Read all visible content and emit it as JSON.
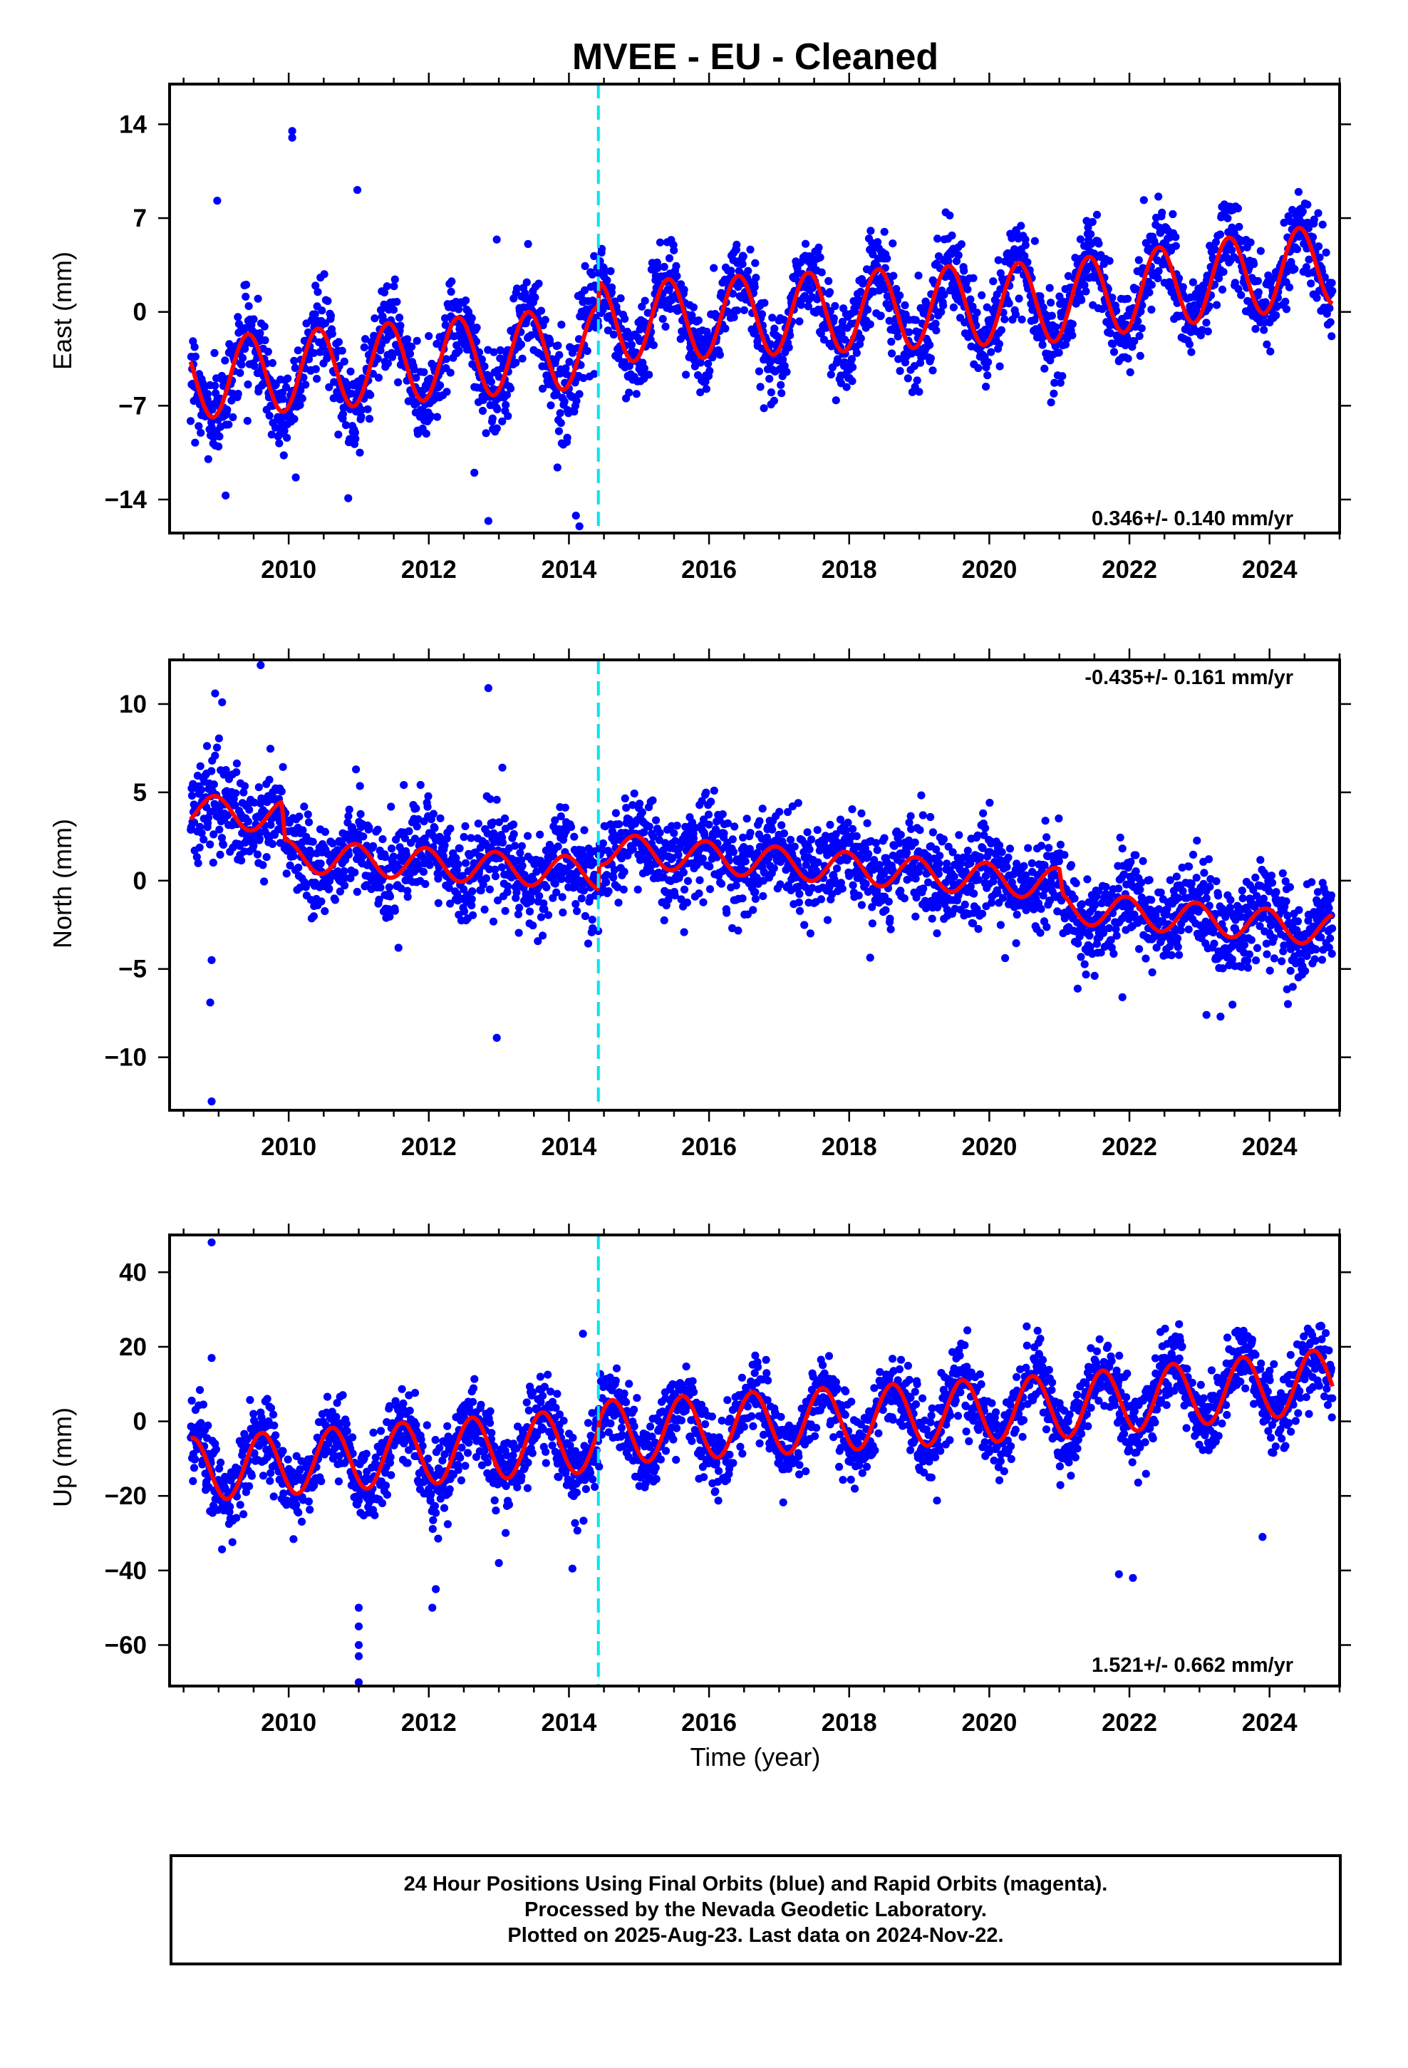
{
  "title": "MVEE  - EU - Cleaned",
  "xlabel": "Time (year)",
  "footer": {
    "line1": "24 Hour Positions Using Final Orbits (blue) and Rapid Orbits (magenta).",
    "line2": "Processed by the Nevada Geodetic Laboratory.",
    "line3": "Plotted on 2025-Aug-23. Last data on 2024-Nov-22."
  },
  "colors": {
    "points": "#0000ff",
    "model": "#ff0000",
    "event_line": "#00e5ee",
    "frame": "#000000"
  },
  "chart_data": [
    {
      "type": "scatter",
      "name": "east",
      "ylabel": "East (mm)",
      "xlim": [
        2008.3,
        2025.0
      ],
      "ylim": [
        -16.5,
        17
      ],
      "yticks": [
        -14,
        -7,
        0,
        7,
        14
      ],
      "xticks": [
        2010,
        2012,
        2014,
        2016,
        2018,
        2020,
        2022,
        2024
      ],
      "rate_text": "0.346+/- 0.140 mm/yr",
      "rate_position": "bottom-right",
      "event_line_x": 2014.42,
      "model": {
        "base": [
          [
            2008.6,
            -5.0
          ],
          [
            2014.42,
            -2.6
          ],
          [
            2014.43,
            -0.8
          ],
          [
            2021.0,
            0.8
          ],
          [
            2024.9,
            3.6
          ]
        ],
        "amp": 3.0,
        "peak_phase": 0.42
      },
      "scatter_sigma": 1.6,
      "outliers": [
        [
          2010.05,
          17.0
        ],
        [
          2010.05,
          13.5
        ],
        [
          2010.05,
          13.0
        ],
        [
          2008.98,
          8.3
        ],
        [
          2010.98,
          9.1
        ],
        [
          2012.97,
          5.4
        ],
        [
          2009.1,
          -13.7
        ],
        [
          2010.85,
          -13.9
        ],
        [
          2012.85,
          -15.6
        ],
        [
          2014.1,
          -15.2
        ],
        [
          2014.15,
          -16.0
        ],
        [
          2012.65,
          -12.0
        ]
      ]
    },
    {
      "type": "scatter",
      "name": "north",
      "ylabel": "North (mm)",
      "xlim": [
        2008.3,
        2025.0
      ],
      "ylim": [
        -13,
        12.5
      ],
      "yticks": [
        -10,
        -5,
        0,
        5,
        10
      ],
      "xticks": [
        2010,
        2012,
        2014,
        2016,
        2018,
        2020,
        2022,
        2024
      ],
      "rate_text": "-0.435+/- 0.161 mm/yr",
      "rate_position": "top-right",
      "event_line_x": 2014.42,
      "model": {
        "base": [
          [
            2008.6,
            4.0
          ],
          [
            2009.9,
            3.6
          ],
          [
            2009.95,
            1.4
          ],
          [
            2014.42,
            0.4
          ],
          [
            2014.43,
            1.8
          ],
          [
            2021.0,
            -0.2
          ],
          [
            2021.05,
            -1.5
          ],
          [
            2024.9,
            -2.8
          ]
        ],
        "amp": 0.9,
        "peak_phase": 0.95
      },
      "scatter_sigma": 1.3,
      "outliers": [
        [
          2009.6,
          12.2
        ],
        [
          2008.95,
          10.6
        ],
        [
          2009.05,
          10.1
        ],
        [
          2012.85,
          10.9
        ],
        [
          2013.05,
          6.4
        ],
        [
          2008.9,
          -12.5
        ],
        [
          2008.88,
          -6.9
        ],
        [
          2008.9,
          -4.5
        ],
        [
          2012.97,
          -8.9
        ],
        [
          2023.1,
          -7.6
        ],
        [
          2023.3,
          -7.7
        ],
        [
          2021.9,
          -6.6
        ]
      ]
    },
    {
      "type": "scatter",
      "name": "up",
      "ylabel": "Up (mm)",
      "xlim": [
        2008.3,
        2025.0
      ],
      "ylim": [
        -71,
        50
      ],
      "yticks": [
        -60,
        -40,
        -20,
        0,
        20,
        40
      ],
      "xticks": [
        2010,
        2012,
        2014,
        2016,
        2018,
        2020,
        2022,
        2024
      ],
      "rate_text": "1.521+/- 0.662 mm/yr",
      "rate_position": "bottom-right",
      "event_line_x": 2014.42,
      "model": {
        "base": [
          [
            2008.6,
            -13.0
          ],
          [
            2014.42,
            -5.0
          ],
          [
            2014.43,
            -3.0
          ],
          [
            2021.0,
            4.0
          ],
          [
            2024.9,
            11.0
          ]
        ],
        "amp": 8.5,
        "peak_phase": 0.62
      },
      "scatter_sigma": 5.0,
      "outliers": [
        [
          2008.9,
          48.0
        ],
        [
          2014.2,
          23.5
        ],
        [
          2008.9,
          17.0
        ],
        [
          2011.0,
          -50.0
        ],
        [
          2011.0,
          -55.0
        ],
        [
          2011.0,
          -60.0
        ],
        [
          2011.0,
          -63.0
        ],
        [
          2011.0,
          -70.0
        ],
        [
          2012.05,
          -50.0
        ],
        [
          2012.1,
          -45.0
        ],
        [
          2014.05,
          -39.5
        ],
        [
          2021.85,
          -41.0
        ],
        [
          2022.05,
          -42.0
        ],
        [
          2023.9,
          -31.0
        ],
        [
          2013.0,
          -38.0
        ]
      ]
    }
  ]
}
